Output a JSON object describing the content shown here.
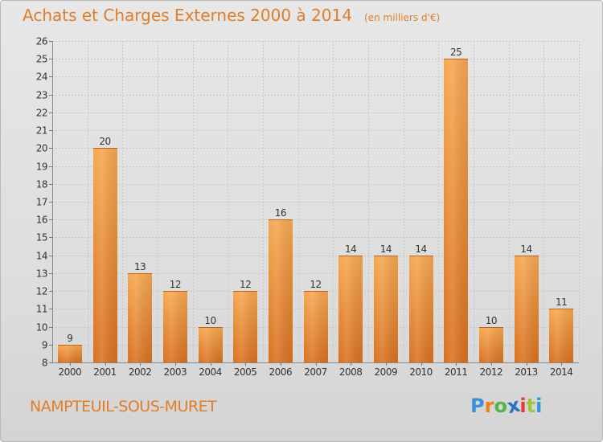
{
  "header": {
    "title": "Achats et Charges Externes 2000 à 2014",
    "unit": "(en milliers d'€)"
  },
  "footer": {
    "commune": "NAMPTEUIL-SOUS-MURET"
  },
  "logo": {
    "letters": [
      "P",
      "r",
      "o",
      "x",
      "i",
      "t",
      "i"
    ],
    "colors": [
      "#3a8fd8",
      "#ef7f1a",
      "#52b548",
      "#2d6fc2",
      "#e63b3b",
      "#9bc53d",
      "#2d9bd8"
    ]
  },
  "chart_data": {
    "type": "bar",
    "title": "Achats et Charges Externes 2000 à 2014",
    "subtitle": "(en milliers d'€)",
    "categories": [
      "2000",
      "2001",
      "2002",
      "2003",
      "2004",
      "2005",
      "2006",
      "2007",
      "2008",
      "2009",
      "2010",
      "2011",
      "2012",
      "2013",
      "2014"
    ],
    "values": [
      9,
      20,
      13,
      12,
      10,
      12,
      16,
      12,
      14,
      14,
      14,
      25,
      10,
      14,
      11
    ],
    "ylim": [
      8,
      26
    ],
    "yticks": [
      8,
      9,
      10,
      11,
      12,
      13,
      14,
      15,
      16,
      17,
      18,
      19,
      20,
      21,
      22,
      23,
      24,
      25,
      26
    ],
    "grid": true,
    "bar_color": "#f0a050",
    "legend": "none"
  }
}
